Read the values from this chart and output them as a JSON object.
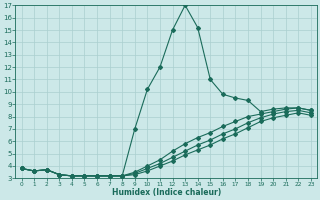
{
  "xlabel": "Humidex (Indice chaleur)",
  "bg_color": "#cce8e8",
  "grid_color": "#aacfcf",
  "line_color": "#1a6b5a",
  "xlim": [
    -0.5,
    23.5
  ],
  "ylim": [
    3,
    17
  ],
  "xticks": [
    0,
    1,
    2,
    3,
    4,
    5,
    6,
    7,
    8,
    9,
    10,
    11,
    12,
    13,
    14,
    15,
    16,
    17,
    18,
    19,
    20,
    21,
    22,
    23
  ],
  "yticks": [
    3,
    4,
    5,
    6,
    7,
    8,
    9,
    10,
    11,
    12,
    13,
    14,
    15,
    16,
    17
  ],
  "line1_x": [
    0,
    1,
    2,
    3,
    4,
    5,
    6,
    7,
    8,
    9,
    10,
    11,
    12,
    13,
    14,
    15,
    16,
    17,
    18,
    19,
    20,
    21,
    22,
    23
  ],
  "line1_y": [
    3.8,
    3.6,
    3.7,
    3.3,
    3.2,
    3.2,
    3.2,
    3.2,
    3.2,
    7.0,
    10.2,
    12.0,
    15.0,
    17.0,
    15.2,
    11.0,
    9.8,
    9.5,
    9.3,
    8.4,
    8.6,
    8.7,
    8.7,
    8.5
  ],
  "line2_x": [
    0,
    1,
    2,
    3,
    4,
    5,
    6,
    7,
    8,
    9,
    10,
    11,
    12,
    13,
    14,
    15,
    16,
    17,
    18,
    19,
    20,
    21,
    22,
    23
  ],
  "line2_y": [
    3.8,
    3.6,
    3.7,
    3.3,
    3.2,
    3.2,
    3.2,
    3.2,
    3.2,
    3.5,
    4.0,
    4.5,
    5.2,
    5.8,
    6.3,
    6.7,
    7.2,
    7.6,
    8.0,
    8.2,
    8.4,
    8.6,
    8.7,
    8.5
  ],
  "line3_x": [
    0,
    1,
    2,
    3,
    4,
    5,
    6,
    7,
    8,
    9,
    10,
    11,
    12,
    13,
    14,
    15,
    16,
    17,
    18,
    19,
    20,
    21,
    22,
    23
  ],
  "line3_y": [
    3.8,
    3.6,
    3.7,
    3.3,
    3.2,
    3.2,
    3.2,
    3.2,
    3.2,
    3.4,
    3.8,
    4.2,
    4.7,
    5.2,
    5.7,
    6.1,
    6.6,
    7.0,
    7.5,
    7.9,
    8.2,
    8.4,
    8.5,
    8.3
  ],
  "line4_x": [
    0,
    1,
    2,
    3,
    4,
    5,
    6,
    7,
    8,
    9,
    10,
    11,
    12,
    13,
    14,
    15,
    16,
    17,
    18,
    19,
    20,
    21,
    22,
    23
  ],
  "line4_y": [
    3.8,
    3.6,
    3.7,
    3.3,
    3.2,
    3.2,
    3.2,
    3.2,
    3.2,
    3.3,
    3.6,
    4.0,
    4.4,
    4.9,
    5.3,
    5.7,
    6.2,
    6.6,
    7.1,
    7.6,
    7.9,
    8.1,
    8.3,
    8.1
  ]
}
